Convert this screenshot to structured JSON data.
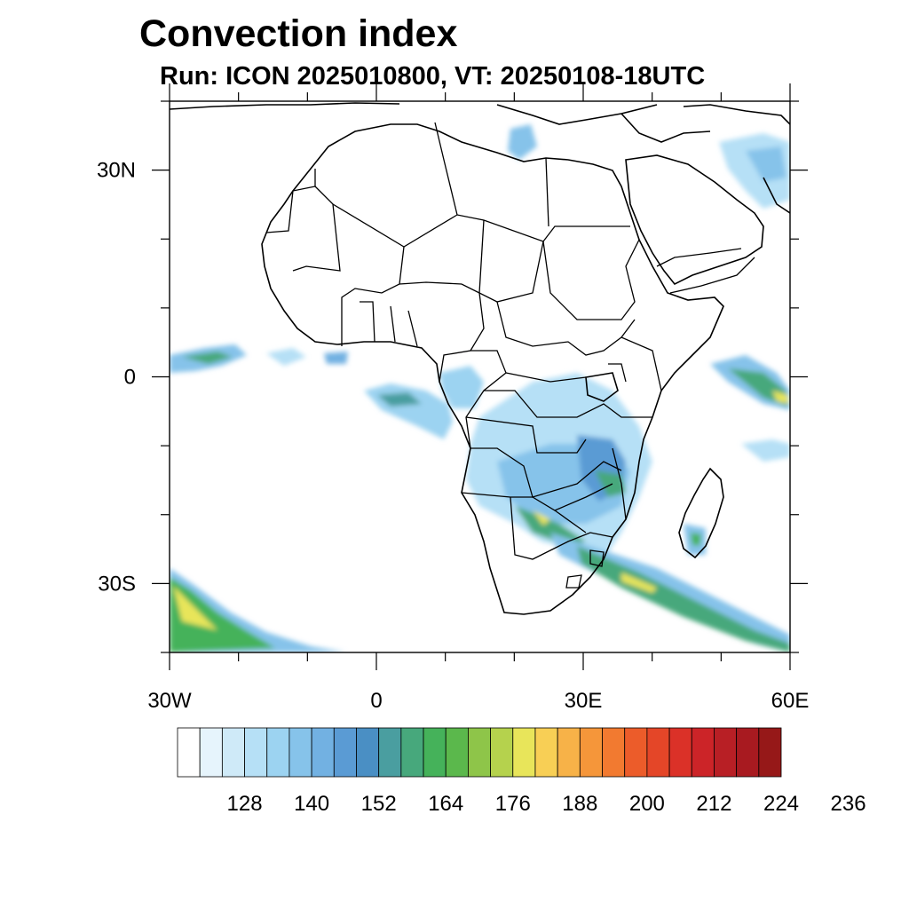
{
  "title": "Convection index",
  "subtitle": "Run: ICON 2025010800,  VT: 20250108-18UTC",
  "map": {
    "lon_range": [
      -30,
      60
    ],
    "lat_range": [
      -40,
      40
    ],
    "lat_labels": [
      {
        "lat": 30,
        "text": "30N"
      },
      {
        "lat": 0,
        "text": "0"
      },
      {
        "lat": -30,
        "text": "30S"
      }
    ],
    "lon_labels": [
      {
        "lon": -30,
        "text": "30W"
      },
      {
        "lon": 0,
        "text": "0"
      },
      {
        "lon": 30,
        "text": "30E"
      },
      {
        "lon": 60,
        "text": "60E"
      }
    ]
  },
  "colorbar": {
    "colors": [
      "#ffffff",
      "#e6f4fc",
      "#cfeaf8",
      "#b6e0f6",
      "#9cd3f1",
      "#86c3ea",
      "#72b1e2",
      "#5a9bd4",
      "#4a8fc4",
      "#4a9ea0",
      "#47a87c",
      "#45b25a",
      "#5bb84c",
      "#8ec549",
      "#b5d24d",
      "#e8e55a",
      "#f8cf55",
      "#f7b248",
      "#f5963a",
      "#f27a30",
      "#ec5c2a",
      "#e44628",
      "#db3128",
      "#cc2428",
      "#b81f25",
      "#a81a20",
      "#961818"
    ],
    "labels": [
      "128",
      "140",
      "152",
      "164",
      "176",
      "188",
      "200",
      "212",
      "224",
      "236"
    ]
  }
}
